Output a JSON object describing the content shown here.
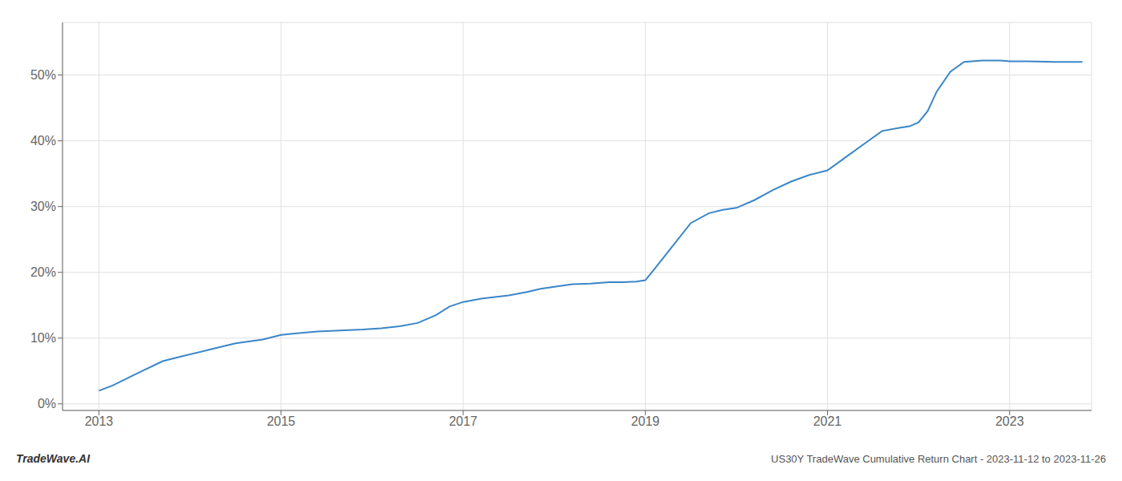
{
  "chart_data": {
    "type": "line",
    "x": [
      2013.0,
      2013.15,
      2013.4,
      2013.7,
      2013.9,
      2014.2,
      2014.5,
      2014.8,
      2015.0,
      2015.15,
      2015.4,
      2015.7,
      2015.9,
      2016.1,
      2016.3,
      2016.5,
      2016.7,
      2016.85,
      2017.0,
      2017.2,
      2017.5,
      2017.7,
      2017.85,
      2018.0,
      2018.2,
      2018.4,
      2018.6,
      2018.75,
      2018.9,
      2019.0,
      2019.1,
      2019.3,
      2019.5,
      2019.7,
      2019.85,
      2020.0,
      2020.2,
      2020.4,
      2020.6,
      2020.8,
      2021.0,
      2021.2,
      2021.4,
      2021.6,
      2021.8,
      2021.9,
      2022.0,
      2022.1,
      2022.2,
      2022.35,
      2022.5,
      2022.7,
      2022.9,
      2023.0,
      2023.2,
      2023.5,
      2023.8
    ],
    "values": [
      2.0,
      2.8,
      4.5,
      6.5,
      7.2,
      8.2,
      9.2,
      9.8,
      10.5,
      10.7,
      11.0,
      11.2,
      11.3,
      11.5,
      11.8,
      12.3,
      13.5,
      14.8,
      15.5,
      16.0,
      16.5,
      17.0,
      17.5,
      17.8,
      18.2,
      18.3,
      18.5,
      18.5,
      18.6,
      18.8,
      20.5,
      24.0,
      27.5,
      29.0,
      29.5,
      29.8,
      31.0,
      32.5,
      33.8,
      34.8,
      35.5,
      37.5,
      39.5,
      41.5,
      42.0,
      42.2,
      42.8,
      44.5,
      47.5,
      50.5,
      52.0,
      52.2,
      52.2,
      52.1,
      52.1,
      52.0,
      52.0
    ],
    "color": "#3a86c8",
    "xlim": [
      2012.6,
      2023.9
    ],
    "xticks": [
      2013,
      2015,
      2017,
      2019,
      2021,
      2023
    ],
    "ylim": [
      -1,
      58
    ],
    "yticks": [
      {
        "value": 0,
        "label": "0%"
      },
      {
        "value": 10,
        "label": "10%"
      },
      {
        "value": 20,
        "label": "20%"
      },
      {
        "value": 30,
        "label": "30%"
      },
      {
        "value": 40,
        "label": "40%"
      },
      {
        "value": 50,
        "label": "50%"
      }
    ],
    "grid": true,
    "annotations": [
      "TradeWave.AI",
      "US30Y TradeWave Cumulative Return Chart - 2023-11-12 to 2023-11-26"
    ]
  }
}
